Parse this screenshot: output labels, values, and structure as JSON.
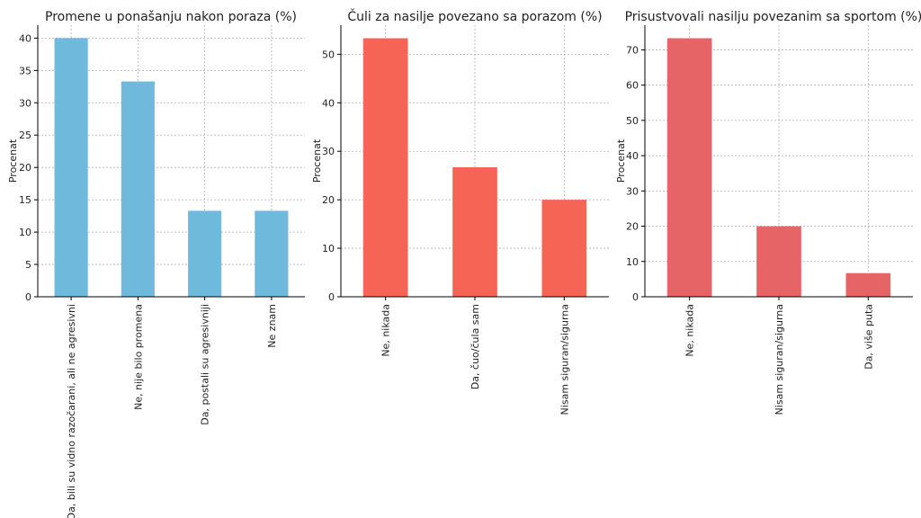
{
  "chart_data": [
    {
      "type": "bar",
      "title": "Promene u ponašanju nakon poraza (%)",
      "xlabel": "",
      "ylabel": "Procenat",
      "categories": [
        "Da, bili su vidno razočarani, ali ne agresivni",
        "Ne, nije bilo promena",
        "Da, postali su agresivniji",
        "Ne znam"
      ],
      "values": [
        40.0,
        33.3,
        13.3,
        13.3
      ],
      "ylim": [
        0,
        42
      ],
      "yticks": [
        0,
        5,
        10,
        15,
        20,
        25,
        30,
        35,
        40
      ],
      "color": "#6fbadc",
      "grid": true
    },
    {
      "type": "bar",
      "title": "Čuli za nasilje povezano sa porazom (%)",
      "xlabel": "",
      "ylabel": "Procenat",
      "categories": [
        "Ne, nikada",
        "Da, čuo/čula sam",
        "Nisam siguran/sigurna"
      ],
      "values": [
        53.3,
        26.7,
        20.0
      ],
      "ylim": [
        0,
        56
      ],
      "yticks": [
        0,
        10,
        20,
        30,
        40,
        50
      ],
      "color": "#f66456",
      "grid": true
    },
    {
      "type": "bar",
      "title": "Prisustvovali nasilju povezanim sa sportom (%)",
      "xlabel": "",
      "ylabel": "Procenat",
      "categories": [
        "Ne, nikada",
        "Nisam siguran/sigurna",
        "Da, više puta"
      ],
      "values": [
        73.3,
        20.0,
        6.7
      ],
      "ylim": [
        0,
        77
      ],
      "yticks": [
        0,
        10,
        20,
        30,
        40,
        50,
        60,
        70
      ],
      "color": "#e66466",
      "grid": true
    }
  ]
}
